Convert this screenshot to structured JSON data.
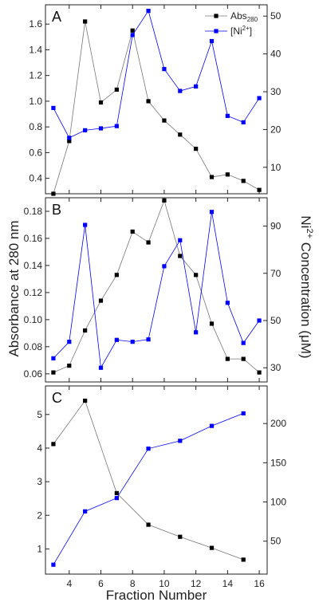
{
  "figure": {
    "ylabel_left": "Absorbance at 280 nm",
    "ylabel_right_parts": [
      "Ni",
      "2+",
      " Concentration (",
      "μ",
      "M)"
    ],
    "xlabel": "Fraction Number",
    "legend": [
      {
        "name_parts": [
          "Abs",
          "280",
          ""
        ],
        "color": "#000000",
        "marker": "square"
      },
      {
        "name_parts": [
          "[Ni",
          "2+",
          "]"
        ],
        "color": "#0000ff",
        "marker": "square"
      }
    ]
  },
  "chart_data": [
    {
      "type": "line",
      "panel": "A",
      "xlim": [
        2.5,
        16.5
      ],
      "xticks": [
        4,
        6,
        8,
        10,
        12,
        14,
        16
      ],
      "y_left": {
        "lim": [
          0.28,
          1.75
        ],
        "ticks": [
          0.4,
          0.6,
          0.8,
          1.0,
          1.2,
          1.4,
          1.6
        ],
        "tick_labels": [
          "0.4",
          "0.6",
          "0.8",
          "1.0",
          "1.2",
          "1.4",
          "1.6"
        ]
      },
      "y_right": {
        "lim": [
          3,
          53
        ],
        "ticks": [
          10,
          20,
          30,
          40,
          50
        ],
        "tick_labels": [
          "10",
          "20",
          "30",
          "40",
          "50"
        ]
      },
      "series": [
        {
          "axis": "left",
          "color": "#000000",
          "x": [
            3,
            4,
            5,
            6,
            7,
            8,
            9,
            10,
            11,
            12,
            13,
            14,
            15,
            16
          ],
          "values": [
            0.28,
            0.69,
            1.62,
            0.99,
            1.09,
            1.55,
            1.0,
            0.85,
            0.74,
            0.63,
            0.41,
            0.43,
            0.38,
            0.31
          ]
        },
        {
          "axis": "right",
          "color": "#0000ff",
          "x": [
            3,
            4,
            5,
            6,
            7,
            8,
            9,
            10,
            11,
            12,
            13,
            14,
            15,
            16
          ],
          "values": [
            25.7,
            17.8,
            19.8,
            20.3,
            20.9,
            45.0,
            51.4,
            36.0,
            30.2,
            31.4,
            43.4,
            23.6,
            21.9,
            28.3
          ]
        }
      ]
    },
    {
      "type": "line",
      "panel": "B",
      "xlim": [
        2.5,
        16.5
      ],
      "xticks": [
        4,
        6,
        8,
        10,
        12,
        14,
        16
      ],
      "y_left": {
        "lim": [
          0.054,
          0.19
        ],
        "ticks": [
          0.06,
          0.08,
          0.1,
          0.12,
          0.14,
          0.16,
          0.18
        ],
        "tick_labels": [
          "0.06",
          "0.08",
          "0.10",
          "0.12",
          "0.14",
          "0.16",
          "0.18"
        ]
      },
      "y_right": {
        "lim": [
          24,
          102
        ],
        "ticks": [
          30,
          50,
          70,
          90
        ],
        "tick_labels": [
          "30",
          "50",
          "70",
          "90"
        ]
      },
      "series": [
        {
          "axis": "left",
          "color": "#000000",
          "x": [
            3,
            4,
            5,
            6,
            7,
            8,
            9,
            10,
            11,
            12,
            13,
            14,
            15,
            16
          ],
          "values": [
            0.061,
            0.066,
            0.092,
            0.114,
            0.133,
            0.165,
            0.157,
            0.188,
            0.147,
            0.133,
            0.097,
            0.071,
            0.071,
            0.061
          ]
        },
        {
          "axis": "right",
          "color": "#0000ff",
          "x": [
            3,
            4,
            5,
            6,
            7,
            8,
            9,
            10,
            11,
            12,
            13,
            14,
            15,
            16
          ],
          "values": [
            34.0,
            41.0,
            90.5,
            30.0,
            41.8,
            41.0,
            42.0,
            73.0,
            84.0,
            45.0,
            96.0,
            57.5,
            40.5,
            50.0
          ]
        }
      ]
    },
    {
      "type": "line",
      "panel": "C",
      "xlim": [
        2.5,
        16.5
      ],
      "xticks": [
        4,
        6,
        8,
        10,
        12,
        14,
        16
      ],
      "xtick_labels": [
        "4",
        "6",
        "8",
        "10",
        "12",
        "14",
        "16"
      ],
      "y_left": {
        "lim": [
          0.25,
          5.85
        ],
        "ticks": [
          1,
          2,
          3,
          4,
          5
        ],
        "tick_labels": [
          "1",
          "2",
          "3",
          "4",
          "5"
        ]
      },
      "y_right": {
        "lim": [
          8,
          248
        ],
        "ticks": [
          50,
          100,
          150,
          200
        ],
        "tick_labels": [
          "50",
          "100",
          "150",
          "200"
        ]
      },
      "series": [
        {
          "axis": "left",
          "color": "#000000",
          "x": [
            3,
            5,
            7,
            9,
            11,
            13,
            15
          ],
          "values": [
            4.12,
            5.41,
            2.66,
            1.72,
            1.36,
            1.03,
            0.68
          ]
        },
        {
          "axis": "right",
          "color": "#0000ff",
          "x": [
            3,
            5,
            7,
            9,
            11,
            13,
            15
          ],
          "values": [
            20,
            88,
            105,
            168,
            178,
            197,
            213
          ]
        }
      ]
    }
  ]
}
